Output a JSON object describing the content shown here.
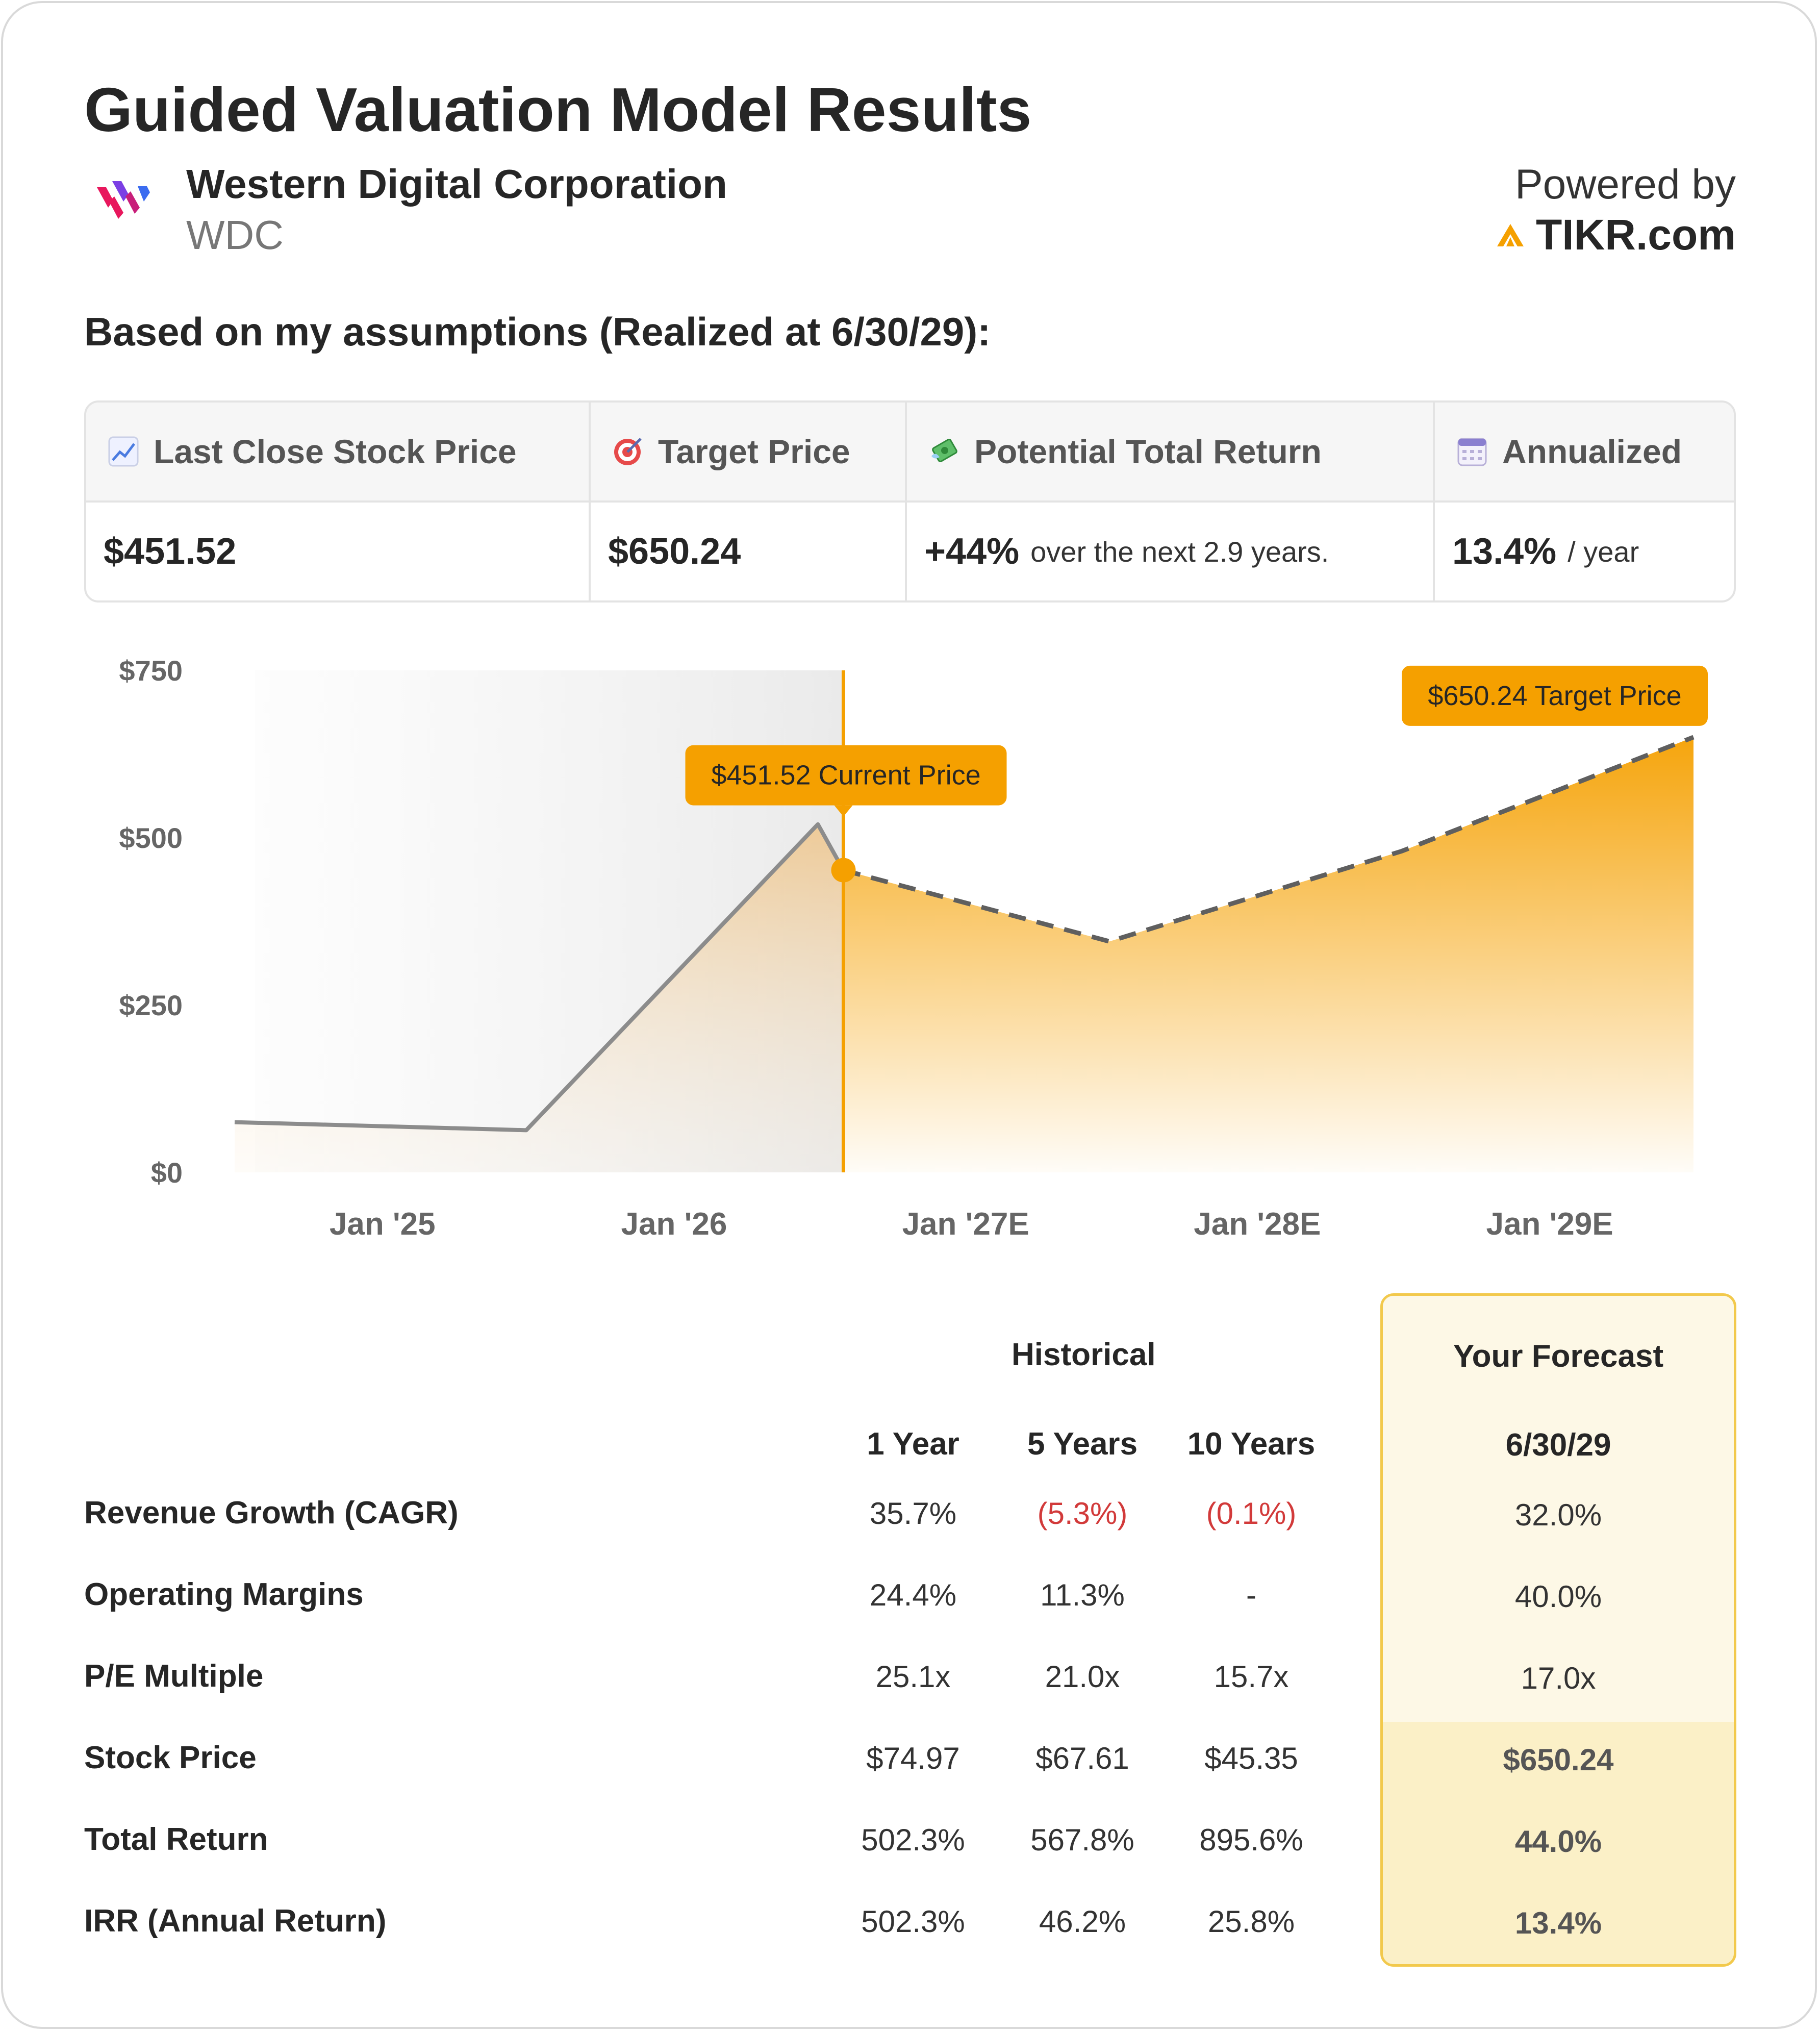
{
  "header": {
    "title": "Guided Valuation Model Results",
    "company_name": "Western Digital Corporation",
    "ticker": "WDC",
    "powered_by": "Powered by",
    "brand": "TIKR.com",
    "logo_icon": "wdc-logo",
    "brand_icon": "tikr-logo-icon"
  },
  "subheading": "Based on my assumptions (Realized at 6/30/29):",
  "stats": {
    "headers": [
      {
        "label": "Last Close Stock Price",
        "icon": "chart-increasing-icon"
      },
      {
        "label": "Target Price",
        "icon": "target-icon"
      },
      {
        "label": "Potential Total Return",
        "icon": "money-with-wings-icon"
      },
      {
        "label": "Annualized",
        "icon": "calendar-icon"
      }
    ],
    "last_close": "$451.52",
    "target_price": "$650.24",
    "total_return": "+44%",
    "total_return_note": "over the next 2.9 years.",
    "annualized": "13.4%",
    "annualized_unit": "/ year"
  },
  "chart_data": {
    "type": "area",
    "y_ticks": [
      "$750",
      "$500",
      "$250",
      "$0"
    ],
    "ylim": [
      0,
      750
    ],
    "x_ticks": [
      "Jan '25",
      "Jan '26",
      "Jan '27E",
      "Jan '28E",
      "Jan '29E"
    ],
    "historical": {
      "x": [
        "2024-06-30",
        "2025-06-30",
        "2026-06-30"
      ],
      "y": [
        75,
        63,
        520
      ]
    },
    "current": {
      "x": "2026-08-01",
      "y": 451.52
    },
    "forecast": {
      "x": [
        "2026-08-01",
        "2027-06-30",
        "2028-06-30",
        "2029-06-30"
      ],
      "y": [
        451.52,
        345,
        480,
        650.24
      ]
    },
    "current_label": "$451.52 Current Price",
    "target_label": "$650.24 Target Price",
    "accent": "#f5a000"
  },
  "table": {
    "historical_header": "Historical",
    "forecast_header": "Your Forecast",
    "columns": [
      "1 Year",
      "5 Years",
      "10 Years"
    ],
    "forecast_date": "6/30/29",
    "rows": [
      {
        "label": "Revenue Growth (CAGR)",
        "values": [
          "35.7%",
          "(5.3%)",
          "(0.1%)"
        ],
        "forecast": "32.0%"
      },
      {
        "label": "Operating Margins",
        "values": [
          "24.4%",
          "11.3%",
          "-"
        ],
        "forecast": "40.0%"
      },
      {
        "label": "P/E Multiple",
        "values": [
          "25.1x",
          "21.0x",
          "15.7x"
        ],
        "forecast": "17.0x"
      },
      {
        "label": "Stock Price",
        "values": [
          "$74.97",
          "$67.61",
          "$45.35"
        ],
        "forecast": "$650.24"
      },
      {
        "label": "Total Return",
        "values": [
          "502.3%",
          "567.8%",
          "895.6%"
        ],
        "forecast": "44.0%"
      },
      {
        "label": "IRR (Annual Return)",
        "values": [
          "502.3%",
          "46.2%",
          "25.8%"
        ],
        "forecast": "13.4%"
      }
    ],
    "negative_color": "#d23a3a"
  }
}
